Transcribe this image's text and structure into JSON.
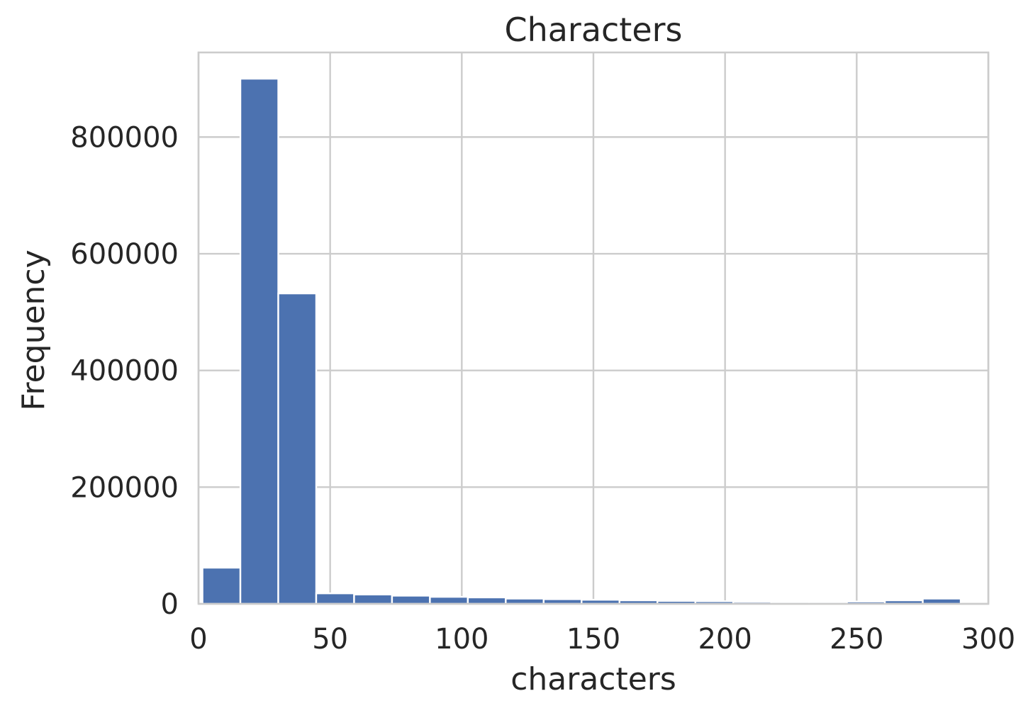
{
  "chart_data": {
    "type": "bar",
    "title": "Characters",
    "xlabel": "characters",
    "ylabel": "Frequency",
    "xlim": [
      0,
      300
    ],
    "ylim": [
      0,
      945000
    ],
    "grid": true,
    "bin_edges": [
      1.5,
      15.9,
      30.3,
      44.7,
      59.1,
      73.5,
      87.9,
      102.3,
      116.7,
      131.1,
      145.5,
      159.9,
      174.3,
      188.7,
      203.1,
      217.5,
      231.9,
      246.3,
      260.7,
      275.1,
      289.5
    ],
    "values": [
      62000,
      900000,
      532000,
      18000,
      16000,
      14000,
      12000,
      11000,
      9000,
      8000,
      7000,
      6000,
      5000,
      4500,
      3500,
      3000,
      3000,
      4000,
      6000,
      9000
    ],
    "x_ticks": [
      0,
      50,
      100,
      150,
      200,
      250,
      300
    ],
    "x_tick_labels": [
      "0",
      "50",
      "100",
      "150",
      "200",
      "250",
      "300"
    ],
    "y_ticks": [
      0,
      200000,
      400000,
      600000,
      800000
    ],
    "y_tick_labels": [
      "0",
      "200000",
      "400000",
      "600000",
      "800000"
    ],
    "colors": {
      "bar": "#4c72b0",
      "grid": "#cccccc",
      "text": "#262626"
    }
  }
}
